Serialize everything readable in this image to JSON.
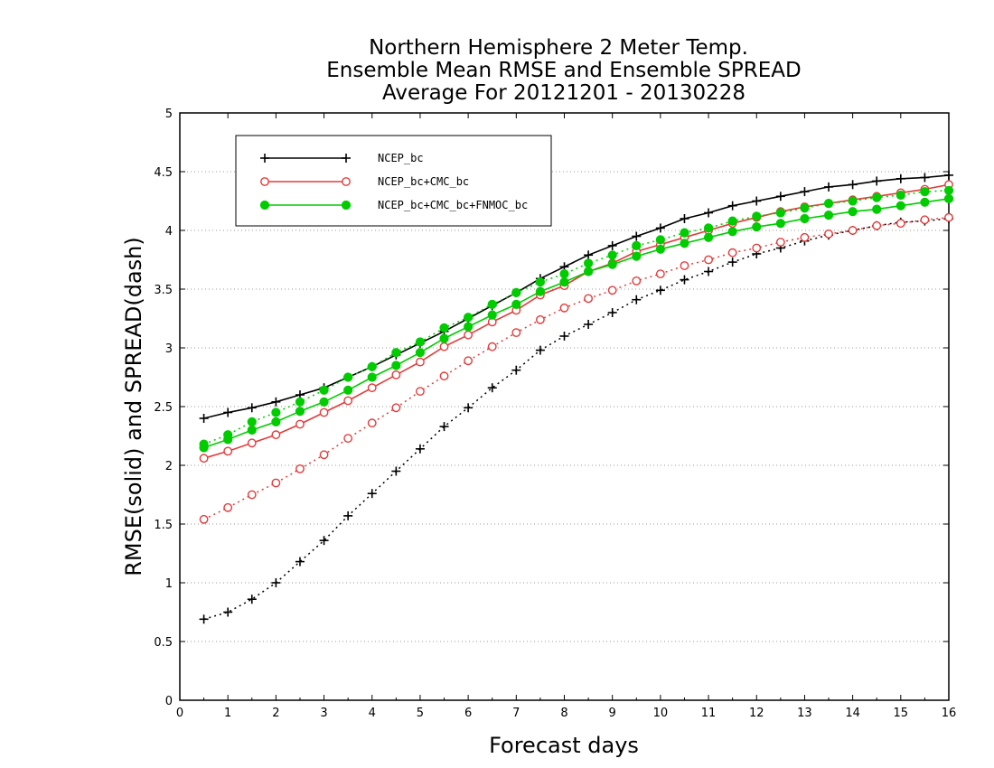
{
  "chart_data": {
    "type": "line",
    "title": [
      "Northern Hemisphere 2 Meter Temp.",
      "Ensemble Mean RMSE and Ensemble SPREAD",
      "Average For 20121201 - 20130228"
    ],
    "xlabel": "Forecast days",
    "ylabel": "RMSE(solid) and SPREAD(dash)",
    "xlim": [
      0,
      16
    ],
    "ylim": [
      0,
      5
    ],
    "xticks": [
      "0",
      "1",
      "2",
      "3",
      "4",
      "5",
      "6",
      "7",
      "8",
      "9",
      "10",
      "11",
      "12",
      "13",
      "14",
      "15",
      "16"
    ],
    "yticks": [
      "0",
      "0.5",
      "1",
      "1.5",
      "2",
      "2.5",
      "3",
      "3.5",
      "4",
      "4.5",
      "5"
    ],
    "grid": "horizontal dotted",
    "legend_position": "top-left",
    "x": [
      0.5,
      1,
      1.5,
      2,
      2.5,
      3,
      3.5,
      4,
      4.5,
      5,
      5.5,
      6,
      6.5,
      7,
      7.5,
      8,
      8.5,
      9,
      9.5,
      10,
      10.5,
      11,
      11.5,
      12,
      12.5,
      13,
      13.5,
      14,
      14.5,
      15,
      15.5,
      16
    ],
    "series": [
      {
        "name": "NCEP_bc",
        "color": "#000000",
        "marker": "plus",
        "rmse": [
          2.4,
          2.45,
          2.49,
          2.54,
          2.6,
          2.66,
          2.75,
          2.84,
          2.94,
          3.04,
          3.14,
          3.25,
          3.36,
          3.47,
          3.59,
          3.69,
          3.79,
          3.87,
          3.95,
          4.02,
          4.1,
          4.15,
          4.21,
          4.25,
          4.29,
          4.33,
          4.37,
          4.39,
          4.42,
          4.44,
          4.45,
          4.47
        ],
        "spread": [
          0.69,
          0.75,
          0.86,
          1.0,
          1.18,
          1.36,
          1.57,
          1.76,
          1.95,
          2.14,
          2.33,
          2.49,
          2.66,
          2.81,
          2.98,
          3.1,
          3.2,
          3.3,
          3.41,
          3.49,
          3.58,
          3.65,
          3.73,
          3.8,
          3.85,
          3.91,
          3.96,
          4.0,
          4.04,
          4.07,
          4.08,
          4.1
        ]
      },
      {
        "name": "NCEP_bc+CMC_bc",
        "color": "#e33b3b",
        "marker": "open-circle",
        "rmse": [
          2.06,
          2.12,
          2.19,
          2.26,
          2.35,
          2.45,
          2.55,
          2.66,
          2.77,
          2.88,
          3.01,
          3.11,
          3.22,
          3.32,
          3.45,
          3.53,
          3.65,
          3.72,
          3.82,
          3.88,
          3.94,
          4.0,
          4.06,
          4.11,
          4.16,
          4.2,
          4.23,
          4.26,
          4.29,
          4.32,
          4.35,
          4.39
        ],
        "spread": [
          1.54,
          1.64,
          1.75,
          1.85,
          1.97,
          2.09,
          2.23,
          2.36,
          2.49,
          2.63,
          2.76,
          2.89,
          3.01,
          3.13,
          3.24,
          3.34,
          3.42,
          3.49,
          3.57,
          3.63,
          3.7,
          3.75,
          3.81,
          3.85,
          3.9,
          3.94,
          3.97,
          4.0,
          4.04,
          4.06,
          4.09,
          4.11
        ]
      },
      {
        "name": "NCEP_bc+CMC_bc+FNMOC_bc",
        "color": "#00cc00",
        "marker": "filled-circle",
        "rmse": [
          2.15,
          2.22,
          2.3,
          2.37,
          2.46,
          2.54,
          2.64,
          2.75,
          2.85,
          2.96,
          3.08,
          3.18,
          3.28,
          3.37,
          3.48,
          3.56,
          3.65,
          3.71,
          3.78,
          3.84,
          3.89,
          3.94,
          3.99,
          4.03,
          4.06,
          4.1,
          4.13,
          4.16,
          4.18,
          4.21,
          4.24,
          4.27
        ],
        "spread": [
          2.18,
          2.26,
          2.37,
          2.45,
          2.54,
          2.64,
          2.75,
          2.84,
          2.96,
          3.05,
          3.17,
          3.26,
          3.37,
          3.47,
          3.56,
          3.63,
          3.72,
          3.79,
          3.87,
          3.92,
          3.98,
          4.02,
          4.08,
          4.12,
          4.15,
          4.19,
          4.23,
          4.25,
          4.28,
          4.3,
          4.33,
          4.34
        ]
      }
    ]
  }
}
